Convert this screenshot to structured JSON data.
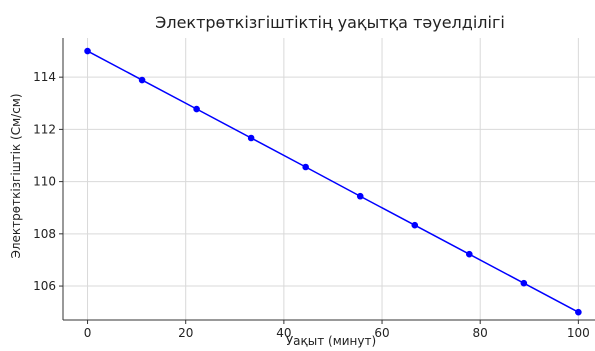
{
  "chart_data": {
    "type": "line",
    "title": "Электрөткізгіштіктің уақытқа тәуелділігі",
    "xlabel": "Уақыт (минут)",
    "ylabel": "Электрөткізгіштік (См/см)",
    "xlim": [
      -5,
      104
    ],
    "ylim": [
      104.7,
      115.5
    ],
    "x_ticks": [
      "0",
      "20",
      "40",
      "60",
      "80",
      "100"
    ],
    "y_ticks": [
      "106",
      "108",
      "110",
      "112",
      "114"
    ],
    "grid": true,
    "legend": "none",
    "series": [
      {
        "color": "#0000ff",
        "marker": "circle",
        "x": [
          0,
          11.11,
          22.22,
          33.33,
          44.44,
          55.56,
          66.67,
          77.78,
          88.89,
          100
        ],
        "y": [
          115.0,
          113.89,
          112.78,
          111.67,
          110.56,
          109.44,
          108.33,
          107.22,
          106.11,
          105.0
        ]
      }
    ]
  }
}
